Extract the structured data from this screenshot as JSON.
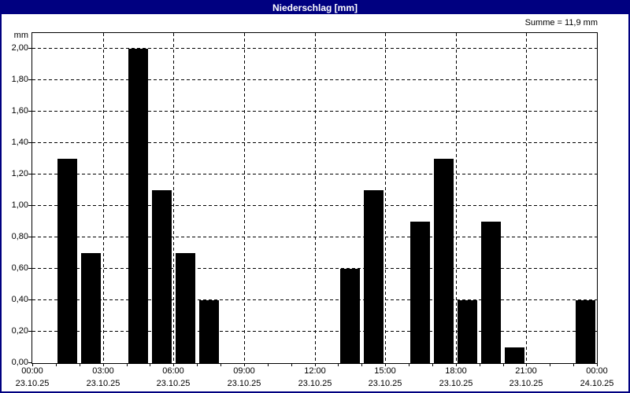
{
  "window": {
    "title": "Niederschlag [mm]"
  },
  "header": {
    "summary": "Summe = 11,9 mm"
  },
  "colors": {
    "titlebar": "#000080",
    "frame": "#000080",
    "bar": "#000000",
    "grid": "#000000",
    "background": "#ffffff",
    "title_text": "#ffffff"
  },
  "chart_data": {
    "type": "bar",
    "title": "Niederschlag [mm]",
    "ylabel": "mm",
    "summe_label": "Summe = 11,9 mm",
    "ylim": [
      0,
      2.1
    ],
    "grid": "dashed",
    "legend": "none",
    "yticks": [
      {
        "value": 0.0,
        "label": "0,00"
      },
      {
        "value": 0.2,
        "label": "0,20"
      },
      {
        "value": 0.4,
        "label": "0,40"
      },
      {
        "value": 0.6,
        "label": "0,60"
      },
      {
        "value": 0.8,
        "label": "0,80"
      },
      {
        "value": 1.0,
        "label": "1,00"
      },
      {
        "value": 1.2,
        "label": "1,20"
      },
      {
        "value": 1.4,
        "label": "1,40"
      },
      {
        "value": 1.6,
        "label": "1,60"
      },
      {
        "value": 1.8,
        "label": "1,80"
      },
      {
        "value": 2.0,
        "label": "2,00"
      }
    ],
    "x_range_hours": [
      0,
      24
    ],
    "x_minor_tick_every_hours": 1,
    "x_gridline_hours": [
      3,
      6,
      9,
      12,
      15,
      18,
      21
    ],
    "xticks": [
      {
        "hour": 0,
        "time": "00:00",
        "date": "23.10.25"
      },
      {
        "hour": 3,
        "time": "03:00",
        "date": "23.10.25"
      },
      {
        "hour": 6,
        "time": "06:00",
        "date": "23.10.25"
      },
      {
        "hour": 9,
        "time": "09:00",
        "date": "23.10.25"
      },
      {
        "hour": 12,
        "time": "12:00",
        "date": "23.10.25"
      },
      {
        "hour": 15,
        "time": "15:00",
        "date": "23.10.25"
      },
      {
        "hour": 18,
        "time": "18:00",
        "date": "23.10.25"
      },
      {
        "hour": 21,
        "time": "21:00",
        "date": "23.10.25"
      },
      {
        "hour": 24,
        "time": "00:00",
        "date": "24.10.25"
      }
    ],
    "bars": [
      {
        "start_hour": 1,
        "end_hour": 2,
        "value": 1.3
      },
      {
        "start_hour": 2,
        "end_hour": 3,
        "value": 0.7
      },
      {
        "start_hour": 4,
        "end_hour": 5,
        "value": 2.0
      },
      {
        "start_hour": 5,
        "end_hour": 6,
        "value": 1.1
      },
      {
        "start_hour": 6,
        "end_hour": 7,
        "value": 0.7
      },
      {
        "start_hour": 7,
        "end_hour": 8,
        "value": 0.4
      },
      {
        "start_hour": 13,
        "end_hour": 14,
        "value": 0.6
      },
      {
        "start_hour": 14,
        "end_hour": 15,
        "value": 1.1
      },
      {
        "start_hour": 16,
        "end_hour": 17,
        "value": 0.9
      },
      {
        "start_hour": 17,
        "end_hour": 18,
        "value": 1.3
      },
      {
        "start_hour": 18,
        "end_hour": 19,
        "value": 0.4
      },
      {
        "start_hour": 19,
        "end_hour": 20,
        "value": 0.9
      },
      {
        "start_hour": 20,
        "end_hour": 21,
        "value": 0.1
      },
      {
        "start_hour": 23,
        "end_hour": 24,
        "value": 0.4
      }
    ]
  }
}
